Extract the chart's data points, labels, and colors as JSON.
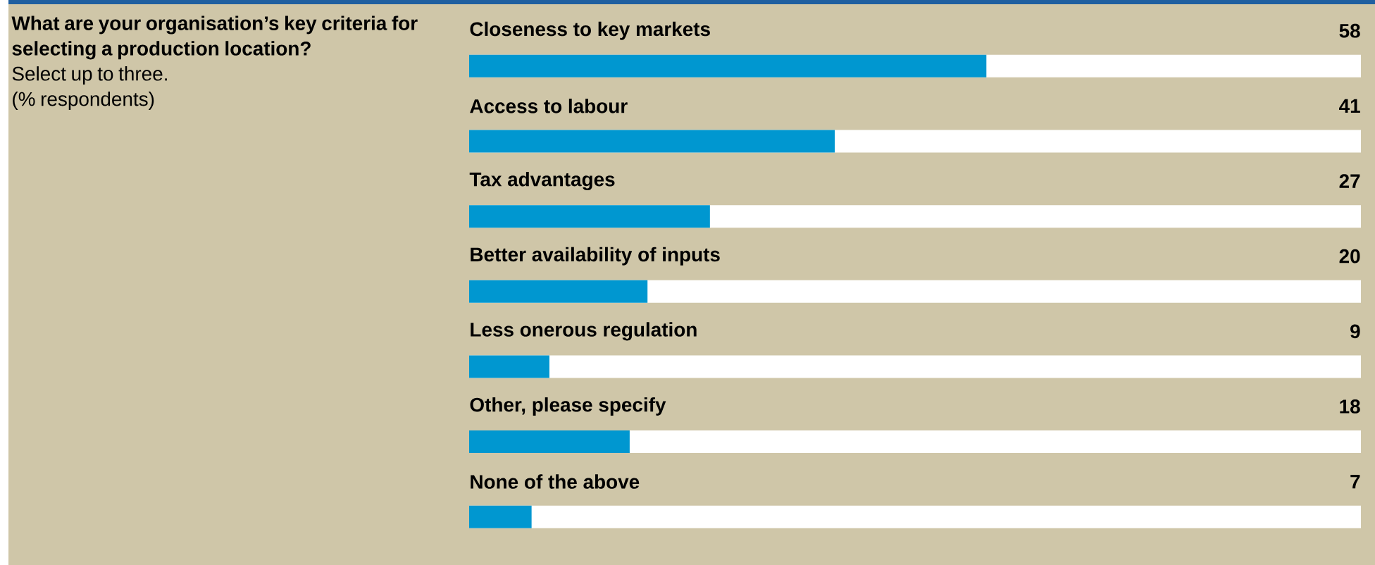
{
  "chart_data": {
    "type": "bar",
    "orientation": "horizontal",
    "title": "What are your organisation’s key criteria for selecting a production location?",
    "subtitle": "Select up to three.",
    "annotations": [
      "(% respondents)"
    ],
    "categories": [
      "Closeness to key markets",
      "Access to labour",
      "Tax advantages",
      "Better availability of inputs",
      "Less onerous regulation",
      "Other, please specify",
      "None of the above"
    ],
    "values": [
      58,
      41,
      27,
      20,
      9,
      18,
      7
    ],
    "color": "#0097d0",
    "xlim": [
      0,
      100
    ],
    "tick_labels": false,
    "data_labels": true
  }
}
